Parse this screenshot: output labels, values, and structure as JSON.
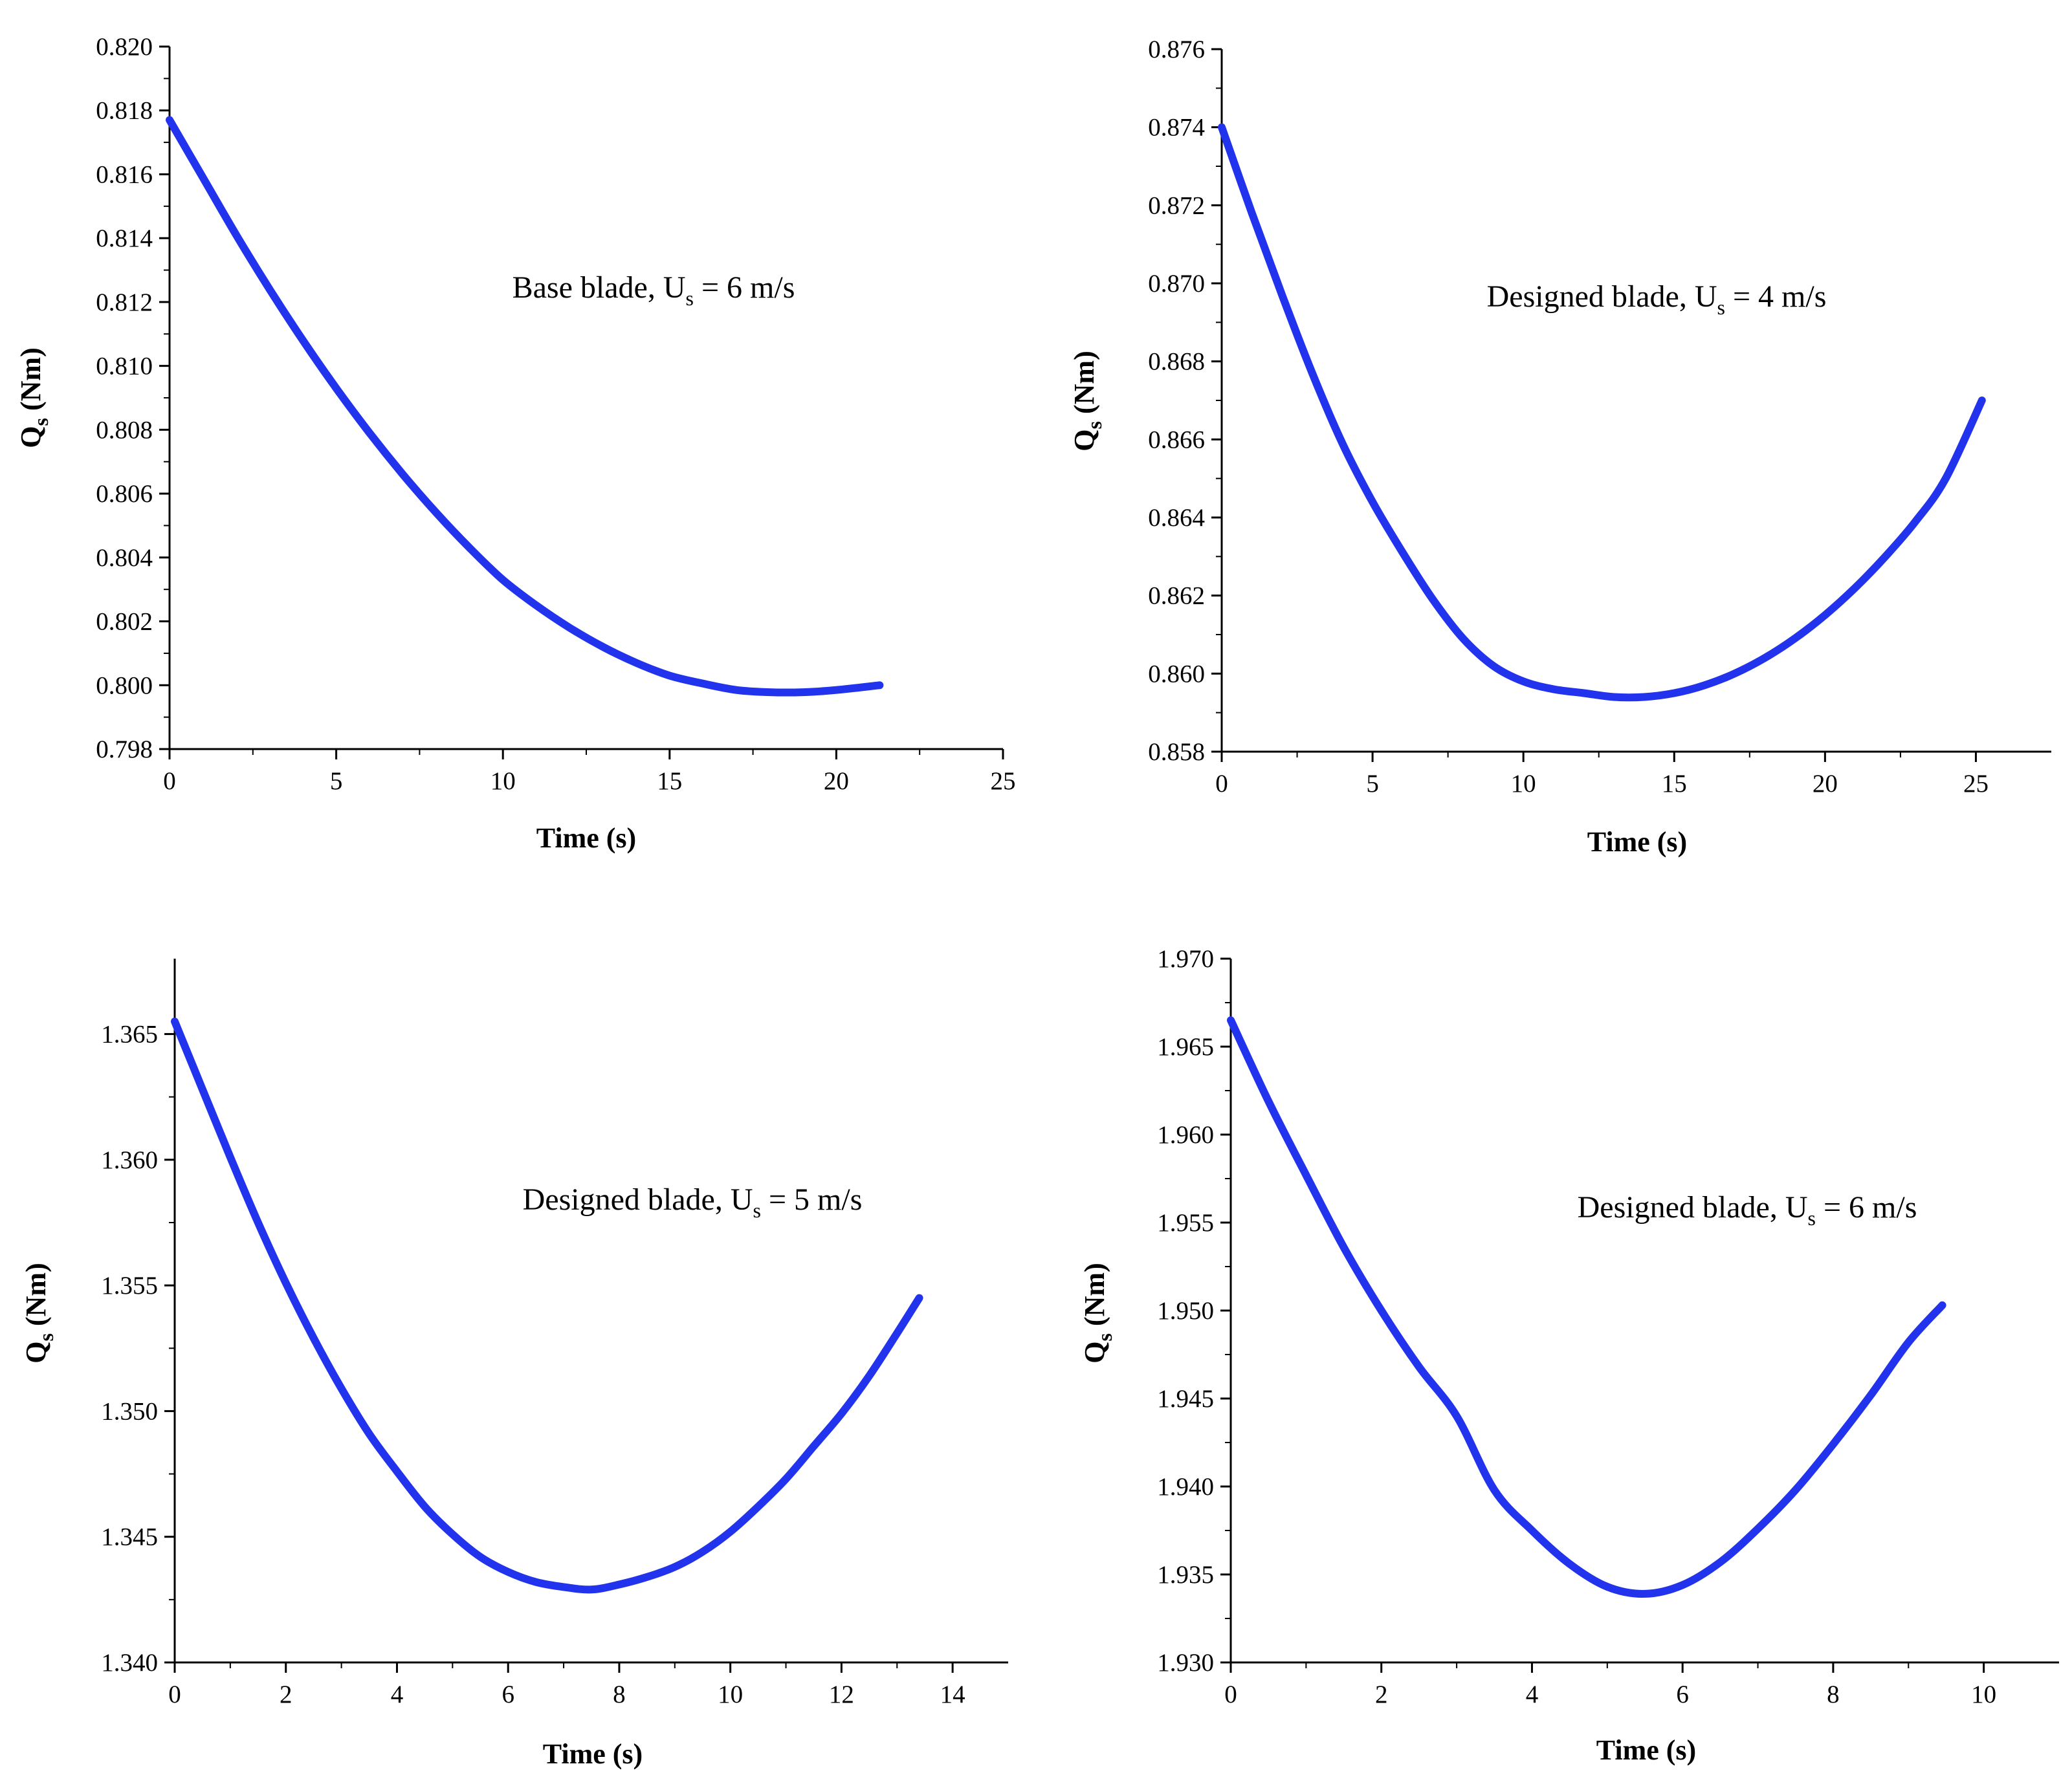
{
  "chart_data": [
    {
      "type": "line",
      "annotation": {
        "text": "Base blade, U",
        "subscript": "s",
        "suffix": " = 6 m/s"
      },
      "xlabel": "Time (s)",
      "ylabel": {
        "main": "Q",
        "sub": "s",
        "unit": " (Nm)"
      },
      "xlim": [
        0,
        25
      ],
      "ylim": [
        0.798,
        0.82
      ],
      "xticks": [
        0,
        5,
        10,
        15,
        20,
        25
      ],
      "xtick_labels": [
        "0",
        "5",
        "10",
        "15",
        "20",
        "25"
      ],
      "yticks": [
        0.798,
        0.8,
        0.802,
        0.804,
        0.806,
        0.808,
        0.81,
        0.812,
        0.814,
        0.816,
        0.818,
        0.82
      ],
      "ytick_labels": [
        "0.798",
        "0.800",
        "0.802",
        "0.804",
        "0.806",
        "0.808",
        "0.810",
        "0.812",
        "0.814",
        "0.816",
        "0.818",
        "0.820"
      ],
      "series": [
        {
          "name": "Q_s",
          "color": "#2233ee",
          "x": [
            0,
            1,
            2,
            3,
            4,
            5,
            6,
            7,
            8,
            9,
            10,
            11,
            12,
            13,
            14,
            15,
            16,
            17,
            18,
            19,
            20,
            21.3
          ],
          "y": [
            0.8177,
            0.8159,
            0.8141,
            0.8124,
            0.8108,
            0.8093,
            0.8079,
            0.8066,
            0.8054,
            0.8043,
            0.8033,
            0.8025,
            0.8018,
            0.8012,
            0.8007,
            0.8003,
            0.80005,
            0.79985,
            0.79978,
            0.79978,
            0.79985,
            0.8
          ]
        }
      ]
    },
    {
      "type": "line",
      "annotation": {
        "text": "Designed blade, U",
        "subscript": "s",
        "suffix": " = 4 m/s"
      },
      "xlabel": "Time (s)",
      "ylabel": {
        "main": "Q",
        "sub": "s",
        "unit": " (Nm)"
      },
      "xlim": [
        0,
        27.5
      ],
      "ylim": [
        0.858,
        0.876
      ],
      "xticks": [
        0,
        5,
        10,
        15,
        20,
        25
      ],
      "xtick_labels": [
        "0",
        "5",
        "10",
        "15",
        "20",
        "25"
      ],
      "yticks": [
        0.858,
        0.86,
        0.862,
        0.864,
        0.866,
        0.868,
        0.87,
        0.872,
        0.874,
        0.876
      ],
      "ytick_labels": [
        "0.858",
        "0.860",
        "0.862",
        "0.864",
        "0.866",
        "0.868",
        "0.870",
        "0.872",
        "0.874",
        "0.876"
      ],
      "series": [
        {
          "name": "Q_s",
          "color": "#2233ee",
          "x": [
            0,
            1,
            2,
            3,
            4,
            5,
            6,
            7,
            8,
            9,
            10,
            11,
            12,
            13,
            14,
            15,
            16,
            17,
            18,
            19,
            20,
            21,
            22,
            23,
            24,
            25.2
          ],
          "y": [
            0.874,
            0.8718,
            0.8697,
            0.8677,
            0.8659,
            0.8644,
            0.8631,
            0.8619,
            0.8609,
            0.8602,
            0.8598,
            0.8596,
            0.8595,
            0.8594,
            0.8594,
            0.8595,
            0.8597,
            0.86,
            0.8604,
            0.8609,
            0.8615,
            0.8622,
            0.863,
            0.8639,
            0.865,
            0.867
          ]
        }
      ]
    },
    {
      "type": "line",
      "annotation": {
        "text": "Designed blade, U",
        "subscript": "s",
        "suffix": " = 5 m/s"
      },
      "xlabel": "Time (s)",
      "ylabel": {
        "main": "Q",
        "sub": "s",
        "unit": " (Nm)"
      },
      "xlim": [
        0,
        15
      ],
      "ylim": [
        1.34,
        1.368
      ],
      "xticks": [
        0,
        2,
        4,
        6,
        8,
        10,
        12,
        14
      ],
      "xtick_labels": [
        "0",
        "2",
        "4",
        "6",
        "8",
        "10",
        "12",
        "14"
      ],
      "yticks": [
        1.34,
        1.345,
        1.35,
        1.355,
        1.36,
        1.365
      ],
      "ytick_labels": [
        "1.340",
        "1.345",
        "1.350",
        "1.355",
        "1.360",
        "1.365"
      ],
      "series": [
        {
          "name": "Q_s",
          "color": "#2233ee",
          "x": [
            0,
            0.5,
            1,
            1.5,
            2,
            2.5,
            3,
            3.5,
            4,
            4.5,
            5,
            5.5,
            6,
            6.5,
            7,
            7.5,
            8,
            8.5,
            9,
            9.5,
            10,
            10.5,
            11,
            11.5,
            12,
            12.5,
            13,
            13.4
          ],
          "y": [
            1.3655,
            1.3628,
            1.3601,
            1.3575,
            1.3551,
            1.3529,
            1.3509,
            1.3491,
            1.3476,
            1.3462,
            1.3451,
            1.3442,
            1.3436,
            1.3432,
            1.343,
            1.3429,
            1.3431,
            1.3434,
            1.3438,
            1.3444,
            1.3452,
            1.3462,
            1.3473,
            1.3486,
            1.3499,
            1.3514,
            1.3531,
            1.3545
          ]
        }
      ]
    },
    {
      "type": "line",
      "annotation": {
        "text": "Designed blade, U",
        "subscript": "s",
        "suffix": " = 6 m/s"
      },
      "xlabel": "Time (s)",
      "ylabel": {
        "main": "Q",
        "sub": "s",
        "unit": " (Nm)"
      },
      "xlim": [
        0,
        11
      ],
      "ylim": [
        1.93,
        1.97
      ],
      "xticks": [
        0,
        2,
        4,
        6,
        8,
        10
      ],
      "xtick_labels": [
        "0",
        "2",
        "4",
        "6",
        "8",
        "10"
      ],
      "yticks": [
        1.93,
        1.935,
        1.94,
        1.945,
        1.95,
        1.955,
        1.96,
        1.965,
        1.97
      ],
      "ytick_labels": [
        "1.930",
        "1.935",
        "1.940",
        "1.945",
        "1.950",
        "1.955",
        "1.960",
        "1.965",
        "1.970"
      ],
      "series": [
        {
          "name": "Q_s",
          "color": "#2233ee",
          "x": [
            0,
            0.5,
            1,
            1.5,
            2,
            2.5,
            3,
            3.5,
            4,
            4.5,
            5,
            5.5,
            6,
            6.5,
            7,
            7.5,
            8,
            8.5,
            9,
            9.45
          ],
          "y": [
            1.9665,
            1.9619,
            1.9577,
            1.9536,
            1.95,
            1.9468,
            1.944,
            1.9398,
            1.9375,
            1.9356,
            1.9343,
            1.9339,
            1.9344,
            1.9357,
            1.9376,
            1.9398,
            1.9424,
            1.9452,
            1.9482,
            1.9503
          ]
        }
      ]
    }
  ]
}
